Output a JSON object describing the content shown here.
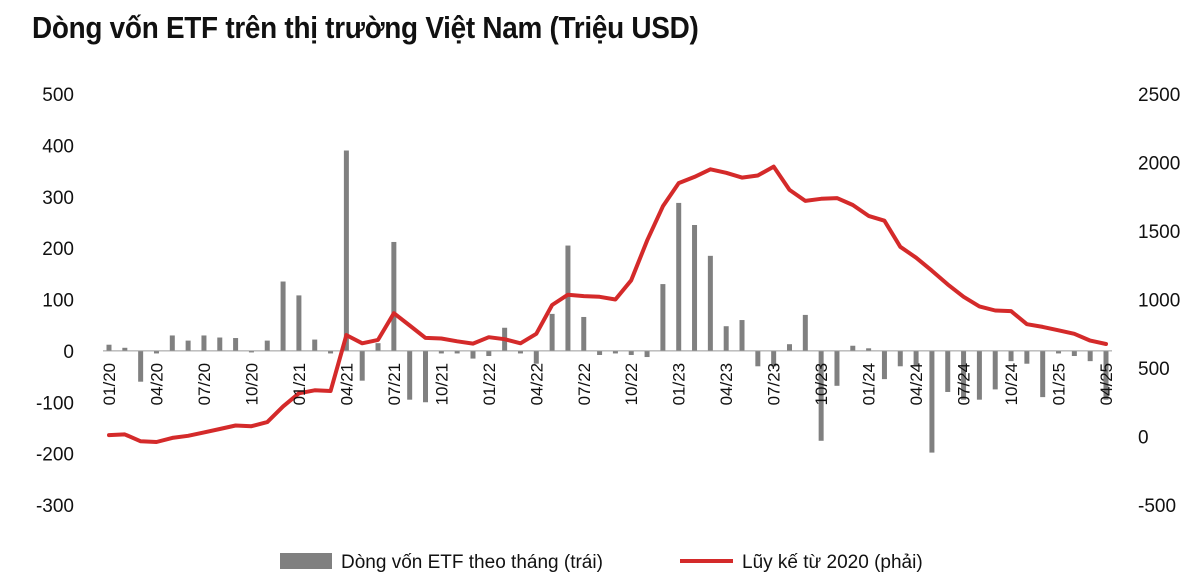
{
  "chart_data": {
    "type": "bar+line",
    "title": "Dòng vốn ETF trên thị trường Việt Nam (Triệu USD)",
    "categories": [
      "01/20",
      "02/20",
      "03/20",
      "04/20",
      "05/20",
      "06/20",
      "07/20",
      "08/20",
      "09/20",
      "10/20",
      "11/20",
      "12/20",
      "01/21",
      "02/21",
      "03/21",
      "04/21",
      "05/21",
      "06/21",
      "07/21",
      "08/21",
      "09/21",
      "10/21",
      "11/21",
      "12/21",
      "01/22",
      "02/22",
      "03/22",
      "04/22",
      "05/22",
      "06/22",
      "07/22",
      "08/22",
      "09/22",
      "10/22",
      "11/22",
      "12/22",
      "01/23",
      "02/23",
      "03/23",
      "04/23",
      "05/23",
      "06/23",
      "07/23",
      "08/23",
      "09/23",
      "10/23",
      "11/23",
      "12/23",
      "01/24",
      "02/24",
      "03/24",
      "04/24",
      "05/24",
      "06/24",
      "07/24",
      "08/24",
      "09/24",
      "10/24",
      "11/24",
      "12/24",
      "01/25",
      "02/25",
      "03/25",
      "04/25"
    ],
    "x_tick_labels": [
      "01/20",
      "04/20",
      "07/20",
      "10/20",
      "01/21",
      "04/21",
      "07/21",
      "10/21",
      "01/22",
      "04/22",
      "07/22",
      "10/22",
      "01/23",
      "04/23",
      "07/23",
      "10/23",
      "01/24",
      "04/24",
      "07/24",
      "10/24",
      "01/25",
      "04/25"
    ],
    "series": [
      {
        "name": "Dòng vốn ETF theo tháng (trái)",
        "type": "bar",
        "axis": "left",
        "color": "#808080",
        "values": [
          12,
          6,
          -60,
          -5,
          30,
          20,
          30,
          26,
          25,
          -3,
          20,
          135,
          108,
          22,
          -5,
          390,
          -58,
          15,
          212,
          -95,
          -100,
          -5,
          -5,
          -15,
          -10,
          45,
          -5,
          -25,
          72,
          205,
          66,
          -8,
          -5,
          -8,
          -12,
          130,
          288,
          245,
          185,
          48,
          60,
          -30,
          -30,
          13,
          70,
          -175,
          -68,
          10,
          5,
          -55,
          -30,
          -28,
          -198,
          -80,
          -95,
          -95,
          -75,
          -20,
          -25,
          -90,
          -5,
          -10,
          -20,
          -95
        ]
      },
      {
        "name": "Lũy kế từ 2020 (phải)",
        "type": "line",
        "axis": "right",
        "color": "#d42a2a",
        "values": [
          10,
          15,
          -35,
          -40,
          -10,
          5,
          30,
          55,
          80,
          75,
          105,
          220,
          315,
          337,
          332,
          740,
          680,
          705,
          900,
          810,
          720,
          715,
          695,
          678,
          725,
          710,
          680,
          750,
          960,
          1035,
          1025,
          1020,
          1000,
          1140,
          1430,
          1680,
          1850,
          1895,
          1950,
          1925,
          1890,
          1905,
          1970,
          1800,
          1720,
          1735,
          1740,
          1690,
          1610,
          1575,
          1385,
          1305,
          1210,
          1110,
          1020,
          950,
          920,
          915,
          820,
          800,
          775,
          750,
          700,
          675
        ]
      }
    ],
    "y_left": {
      "min": -300,
      "max": 500,
      "ticks": [
        -300,
        -200,
        -100,
        0,
        100,
        200,
        300,
        400,
        500
      ],
      "tick_labels": [
        "-300",
        "-200",
        "-100",
        "0",
        "100",
        "200",
        "300",
        "400",
        "500"
      ]
    },
    "y_right": {
      "min": -500,
      "max": 2500,
      "ticks": [
        -500,
        0,
        500,
        1000,
        1500,
        2000,
        2500
      ],
      "tick_labels": [
        "-500",
        "0",
        "500",
        "1000",
        "1500",
        "2000",
        "2500"
      ]
    },
    "legend": {
      "position": "bottom-center",
      "bar_label": "Dòng vốn ETF theo tháng (trái)",
      "line_label": "Lũy kế từ 2020 (phải)"
    },
    "grid": false
  }
}
